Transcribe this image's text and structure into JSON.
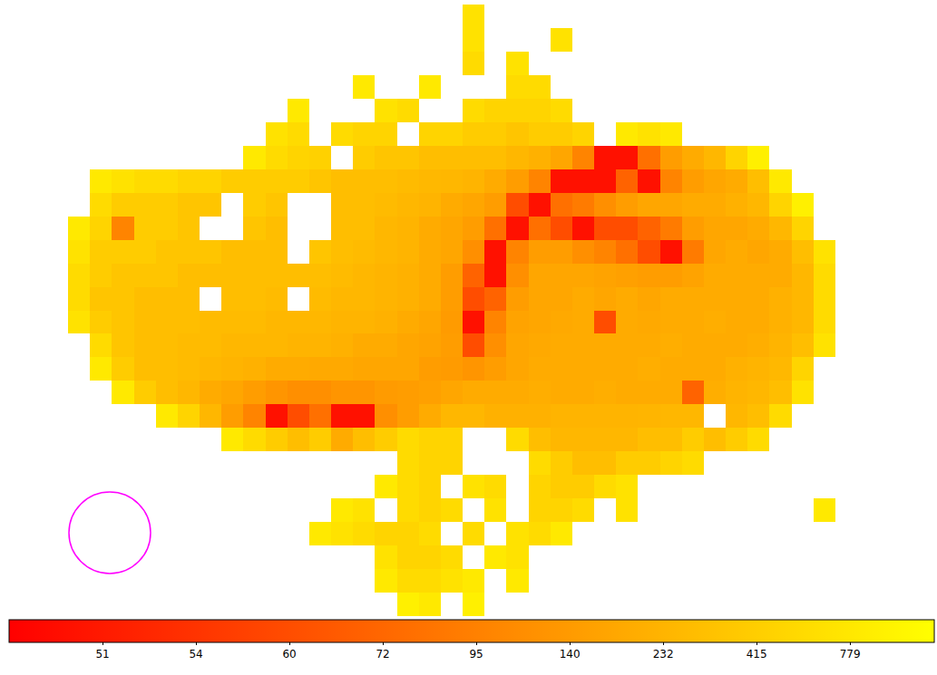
{
  "chart_data": {
    "type": "heatmap",
    "tick_labels": false,
    "colors": [
      "#ff0000",
      "#ffff00"
    ],
    "colorbar": {
      "range": [
        48,
        1107
      ],
      "ticks": [
        51,
        54,
        60,
        72,
        95,
        140,
        232,
        415,
        779
      ]
    },
    "cells": [
      [
        null,
        null,
        null,
        null,
        null,
        null,
        null,
        null,
        null,
        null,
        null,
        null,
        null,
        null,
        null,
        null,
        null,
        null,
        700,
        null,
        null,
        null,
        null,
        null,
        null,
        null,
        null,
        null,
        null,
        null,
        null,
        null,
        null,
        null,
        null,
        null
      ],
      [
        null,
        null,
        null,
        null,
        null,
        null,
        null,
        null,
        null,
        null,
        null,
        null,
        null,
        null,
        null,
        null,
        null,
        null,
        700,
        null,
        null,
        null,
        700,
        null,
        null,
        null,
        null,
        null,
        null,
        null,
        null,
        null,
        null,
        null,
        null,
        null
      ],
      [
        null,
        null,
        null,
        null,
        null,
        null,
        null,
        null,
        null,
        null,
        null,
        null,
        null,
        null,
        null,
        null,
        null,
        null,
        600,
        null,
        700,
        null,
        null,
        null,
        null,
        null,
        null,
        null,
        null,
        null,
        null,
        null,
        null,
        null,
        null,
        null
      ],
      [
        null,
        null,
        null,
        null,
        null,
        null,
        null,
        null,
        null,
        null,
        null,
        null,
        null,
        800,
        null,
        null,
        800,
        null,
        null,
        null,
        600,
        600,
        null,
        null,
        null,
        null,
        null,
        null,
        null,
        null,
        null,
        null,
        null,
        null,
        null,
        null
      ],
      [
        null,
        null,
        null,
        null,
        null,
        null,
        null,
        null,
        null,
        null,
        800,
        null,
        null,
        null,
        700,
        600,
        null,
        null,
        600,
        500,
        500,
        500,
        600,
        null,
        null,
        null,
        null,
        null,
        null,
        null,
        null,
        null,
        null,
        null,
        null,
        null
      ],
      [
        null,
        null,
        null,
        null,
        null,
        null,
        null,
        null,
        null,
        700,
        600,
        null,
        600,
        500,
        500,
        null,
        500,
        500,
        400,
        400,
        350,
        400,
        400,
        500,
        null,
        800,
        700,
        800,
        null,
        null,
        null,
        null,
        null,
        null,
        null,
        null
      ],
      [
        null,
        null,
        null,
        null,
        null,
        null,
        null,
        null,
        800,
        600,
        500,
        450,
        null,
        400,
        350,
        350,
        300,
        300,
        300,
        300,
        250,
        220,
        180,
        100,
        50,
        50,
        80,
        150,
        200,
        250,
        500,
        900,
        null,
        null,
        null,
        null
      ],
      [
        null,
        800,
        700,
        600,
        600,
        500,
        500,
        400,
        400,
        400,
        400,
        350,
        300,
        300,
        300,
        280,
        260,
        250,
        230,
        200,
        150,
        100,
        50,
        50,
        50,
        70,
        50,
        100,
        150,
        180,
        200,
        300,
        800,
        null,
        null,
        null
      ],
      [
        null,
        600,
        400,
        400,
        400,
        350,
        350,
        null,
        400,
        350,
        null,
        null,
        300,
        300,
        280,
        250,
        230,
        200,
        180,
        150,
        60,
        50,
        80,
        90,
        120,
        150,
        180,
        180,
        200,
        200,
        220,
        250,
        500,
        900,
        null,
        null
      ],
      [
        800,
        500,
        100,
        400,
        400,
        350,
        null,
        null,
        350,
        300,
        null,
        null,
        300,
        300,
        250,
        230,
        200,
        180,
        150,
        80,
        50,
        80,
        60,
        50,
        60,
        60,
        70,
        90,
        150,
        180,
        180,
        200,
        250,
        500,
        null,
        null
      ],
      [
        700,
        400,
        400,
        400,
        350,
        350,
        350,
        300,
        300,
        300,
        null,
        350,
        300,
        280,
        250,
        230,
        200,
        180,
        120,
        50,
        100,
        150,
        150,
        120,
        100,
        80,
        60,
        50,
        90,
        180,
        200,
        180,
        200,
        300,
        700,
        null
      ],
      [
        600,
        400,
        350,
        350,
        350,
        300,
        300,
        300,
        300,
        300,
        300,
        300,
        280,
        250,
        230,
        220,
        200,
        150,
        70,
        50,
        120,
        180,
        180,
        180,
        170,
        160,
        150,
        150,
        170,
        200,
        200,
        200,
        200,
        250,
        600,
        null
      ],
      [
        600,
        350,
        350,
        300,
        300,
        300,
        null,
        300,
        300,
        280,
        null,
        280,
        250,
        250,
        230,
        220,
        200,
        150,
        60,
        70,
        150,
        180,
        180,
        200,
        180,
        200,
        180,
        200,
        200,
        200,
        200,
        200,
        220,
        250,
        600,
        null
      ],
      [
        700,
        400,
        350,
        300,
        300,
        300,
        280,
        280,
        280,
        250,
        250,
        250,
        230,
        230,
        220,
        200,
        180,
        140,
        50,
        100,
        170,
        180,
        190,
        200,
        60,
        200,
        190,
        200,
        200,
        210,
        200,
        200,
        220,
        250,
        600,
        null
      ],
      [
        null,
        600,
        350,
        300,
        300,
        280,
        280,
        250,
        250,
        250,
        230,
        230,
        220,
        200,
        200,
        180,
        170,
        150,
        60,
        120,
        180,
        190,
        200,
        200,
        200,
        200,
        200,
        210,
        200,
        200,
        200,
        210,
        230,
        300,
        700,
        null
      ],
      [
        null,
        800,
        400,
        300,
        300,
        280,
        250,
        230,
        220,
        200,
        200,
        190,
        190,
        180,
        180,
        180,
        150,
        140,
        130,
        150,
        180,
        200,
        200,
        200,
        200,
        200,
        210,
        200,
        200,
        200,
        220,
        230,
        260,
        500,
        null,
        null
      ],
      [
        null,
        null,
        800,
        400,
        300,
        250,
        200,
        180,
        150,
        130,
        120,
        120,
        130,
        130,
        140,
        150,
        160,
        180,
        200,
        200,
        200,
        210,
        200,
        200,
        210,
        200,
        200,
        200,
        70,
        210,
        230,
        250,
        300,
        700,
        null,
        null
      ],
      [
        null,
        null,
        null,
        null,
        800,
        500,
        250,
        150,
        100,
        50,
        60,
        80,
        50,
        50,
        120,
        150,
        200,
        250,
        250,
        220,
        220,
        220,
        230,
        230,
        230,
        230,
        240,
        250,
        250,
        null,
        250,
        300,
        600,
        null,
        null,
        null
      ],
      [
        null,
        null,
        null,
        null,
        null,
        null,
        null,
        800,
        600,
        400,
        300,
        400,
        200,
        300,
        400,
        600,
        500,
        500,
        null,
        null,
        600,
        300,
        250,
        250,
        250,
        250,
        300,
        300,
        400,
        300,
        400,
        600,
        null,
        null,
        null,
        null
      ],
      [
        null,
        null,
        null,
        null,
        null,
        null,
        null,
        null,
        null,
        null,
        null,
        null,
        null,
        null,
        null,
        600,
        500,
        500,
        null,
        null,
        null,
        600,
        400,
        300,
        300,
        400,
        400,
        500,
        600,
        null,
        null,
        null,
        null,
        null,
        null,
        null
      ],
      [
        null,
        null,
        null,
        null,
        null,
        null,
        null,
        null,
        null,
        null,
        null,
        null,
        null,
        null,
        800,
        600,
        500,
        null,
        700,
        600,
        null,
        500,
        400,
        400,
        600,
        700,
        null,
        null,
        null,
        null,
        null,
        null,
        null,
        null,
        null,
        null
      ],
      [
        null,
        null,
        null,
        null,
        null,
        null,
        null,
        null,
        null,
        null,
        null,
        null,
        800,
        700,
        null,
        600,
        500,
        600,
        null,
        700,
        null,
        500,
        500,
        600,
        null,
        700,
        null,
        null,
        null,
        null,
        null,
        null,
        null,
        null,
        800,
        null
      ],
      [
        null,
        null,
        null,
        null,
        null,
        null,
        null,
        null,
        null,
        null,
        null,
        800,
        700,
        600,
        500,
        500,
        600,
        null,
        600,
        null,
        700,
        600,
        800,
        null,
        null,
        null,
        null,
        null,
        null,
        null,
        null,
        null,
        null,
        null,
        null,
        null
      ],
      [
        null,
        null,
        null,
        null,
        null,
        null,
        null,
        null,
        null,
        null,
        null,
        null,
        null,
        null,
        700,
        500,
        500,
        600,
        null,
        800,
        700,
        null,
        null,
        null,
        null,
        null,
        null,
        null,
        null,
        null,
        null,
        null,
        null,
        null,
        null,
        null
      ],
      [
        null,
        null,
        null,
        null,
        null,
        null,
        null,
        null,
        null,
        null,
        null,
        null,
        null,
        null,
        800,
        600,
        600,
        700,
        800,
        null,
        800,
        null,
        null,
        null,
        null,
        null,
        null,
        null,
        null,
        null,
        null,
        null,
        null,
        null,
        null,
        null
      ],
      [
        null,
        null,
        null,
        null,
        null,
        null,
        null,
        null,
        null,
        null,
        null,
        null,
        null,
        null,
        null,
        900,
        800,
        null,
        900,
        null,
        null,
        null,
        null,
        null,
        null,
        null,
        null,
        null,
        null,
        null,
        null,
        null,
        null,
        null,
        null,
        null
      ]
    ]
  }
}
